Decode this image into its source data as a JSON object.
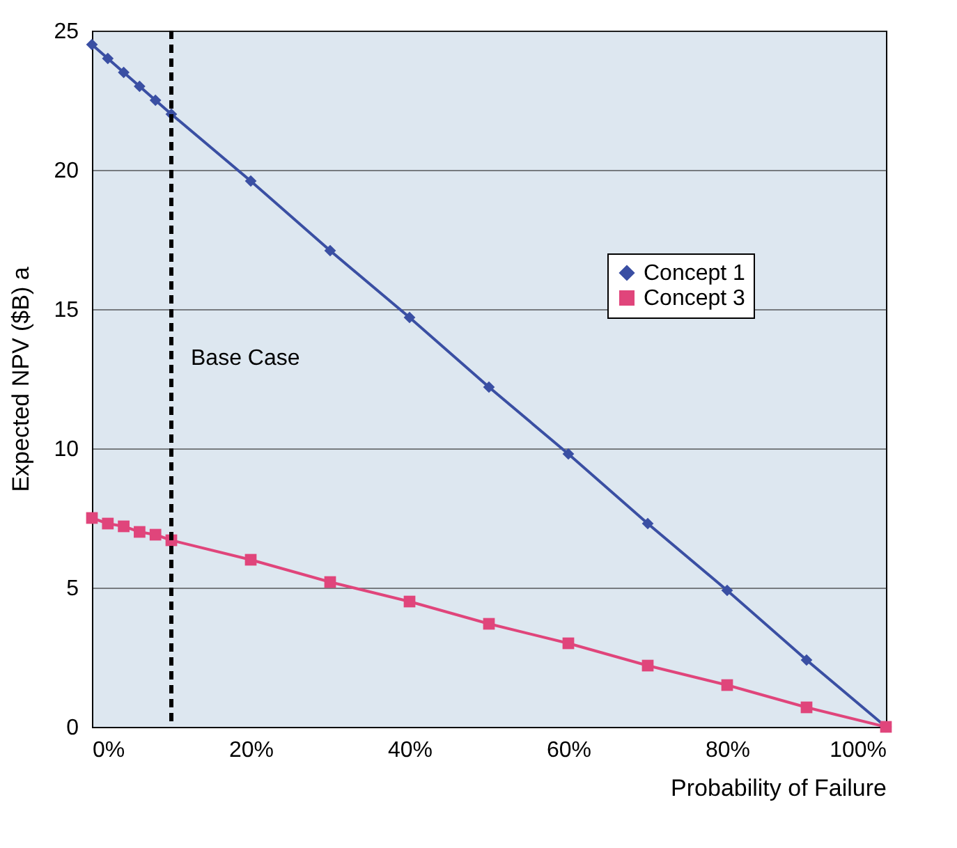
{
  "chart_data": {
    "type": "line",
    "xlabel": "Probability of Failure",
    "ylabel": "Expected NPV ($B)  a",
    "x": [
      0,
      2,
      4,
      6,
      8,
      10,
      20,
      30,
      40,
      50,
      60,
      70,
      80,
      90,
      100
    ],
    "series": [
      {
        "name": "Concept 1",
        "color": "#3a4fa3",
        "marker": "diamond",
        "values": [
          24.5,
          24.0,
          23.5,
          23.0,
          22.5,
          22.0,
          19.6,
          17.1,
          14.7,
          12.2,
          9.8,
          7.3,
          4.9,
          2.4,
          0
        ]
      },
      {
        "name": "Concept 3",
        "color": "#e0457b",
        "marker": "square",
        "values": [
          7.5,
          7.3,
          7.2,
          7.0,
          6.9,
          6.7,
          6.0,
          5.2,
          4.5,
          3.7,
          3.0,
          2.2,
          1.5,
          0.7,
          0
        ]
      }
    ],
    "xlim": [
      0,
      100
    ],
    "xticks": [
      {
        "value": 0,
        "label": "0%"
      },
      {
        "value": 20,
        "label": "20%"
      },
      {
        "value": 40,
        "label": "40%"
      },
      {
        "value": 60,
        "label": "60%"
      },
      {
        "value": 80,
        "label": "80%"
      },
      {
        "value": 100,
        "label": "100%"
      }
    ],
    "ylim": [
      0,
      25
    ],
    "yticks": [
      0,
      5,
      10,
      15,
      20,
      25
    ],
    "grid": "y",
    "legend": "right",
    "ref_lines": [
      {
        "axis": "x",
        "value": 10,
        "label": "Base Case",
        "color": "#000000",
        "line_style": "dashed"
      }
    ]
  }
}
